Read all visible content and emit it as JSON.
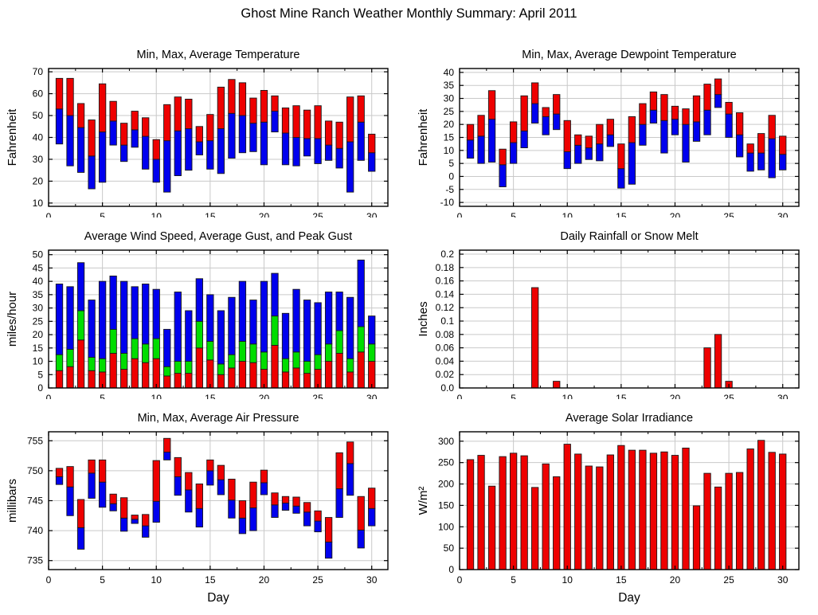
{
  "page_title": "Ghost Mine Ranch Weather Monthly Summary: April 2011",
  "palette": {
    "bar_red": "#ee0000",
    "bar_green": "#00dd00",
    "bar_blue": "#0000ee",
    "grid_line": "#c9c9c9",
    "axis_frame": "#000000",
    "background": "#ffffff"
  },
  "chart_data": [
    {
      "id": "temperature",
      "type": "range-bar",
      "title": "Min, Max, Average Temperature",
      "ylabel": "Fahrenheit",
      "xlabel": "",
      "grid_position": {
        "row": 0,
        "col": 0
      },
      "grid": true,
      "legend": "none",
      "xlim": [
        0,
        31.5
      ],
      "xticks": [
        0,
        5,
        10,
        15,
        20,
        25,
        30
      ],
      "ylim": [
        8.5,
        71.5
      ],
      "yticks": [
        10,
        20,
        30,
        40,
        50,
        60,
        70
      ],
      "x": [
        1,
        2,
        3,
        4,
        5,
        6,
        7,
        8,
        9,
        10,
        11,
        12,
        13,
        14,
        15,
        16,
        17,
        18,
        19,
        20,
        21,
        22,
        23,
        24,
        25,
        26,
        27,
        28,
        29,
        30
      ],
      "series": [
        {
          "name": "min",
          "color": "#0000ee",
          "values": [
            37,
            27,
            24,
            16.5,
            19.5,
            36.5,
            29,
            35.5,
            25.5,
            19.5,
            15,
            22.5,
            25,
            32,
            25.5,
            23.5,
            30.5,
            33,
            33.5,
            27.5,
            42.5,
            27.5,
            27,
            31.5,
            28,
            29.5,
            26,
            15,
            29.5,
            24.5
          ]
        },
        {
          "name": "average",
          "color": null,
          "values": [
            53,
            50,
            44.5,
            31.5,
            42.5,
            47.5,
            36.5,
            43.5,
            40.5,
            30,
            38.5,
            43,
            44,
            38,
            38.5,
            44,
            51,
            50,
            46.5,
            47,
            52,
            42,
            40,
            39.5,
            39.5,
            36.5,
            35,
            38,
            47,
            33
          ]
        },
        {
          "name": "max",
          "color": "#ee0000",
          "values": [
            67,
            67,
            55.5,
            48,
            64.5,
            56.5,
            46.5,
            52,
            49,
            39,
            55,
            58.5,
            57.5,
            45,
            50.5,
            63,
            66.5,
            65,
            58,
            61.5,
            59,
            53.5,
            54.5,
            52.5,
            54.5,
            47.5,
            47,
            58.5,
            59,
            41.5
          ]
        }
      ]
    },
    {
      "id": "dewpoint",
      "type": "range-bar",
      "title": "Min, Max, Average Dewpoint Temperature",
      "ylabel": "Fahrenheit",
      "xlabel": "",
      "grid_position": {
        "row": 0,
        "col": 1
      },
      "grid": true,
      "legend": "none",
      "xlim": [
        0,
        31.5
      ],
      "xticks": [
        0,
        5,
        10,
        15,
        20,
        25,
        30
      ],
      "ylim": [
        -11.5,
        41.5
      ],
      "yticks": [
        -10,
        -5,
        0,
        5,
        10,
        15,
        20,
        25,
        30,
        35,
        40
      ],
      "x": [
        1,
        2,
        3,
        4,
        5,
        6,
        7,
        8,
        9,
        10,
        11,
        12,
        13,
        14,
        15,
        16,
        17,
        18,
        19,
        20,
        21,
        22,
        23,
        24,
        25,
        26,
        27,
        28,
        29,
        30
      ],
      "series": [
        {
          "name": "min",
          "color": "#0000ee",
          "values": [
            7,
            5,
            5.5,
            -4,
            5,
            11,
            20.5,
            16,
            18,
            3,
            5,
            6.5,
            6,
            11.5,
            -4.5,
            -3,
            12,
            20.5,
            9,
            16,
            5.5,
            13.5,
            16,
            26.5,
            15,
            7.5,
            2,
            2.5,
            -0.5,
            2.5
          ]
        },
        {
          "name": "average",
          "color": null,
          "values": [
            14,
            15.5,
            22,
            4.5,
            13,
            17.5,
            28,
            23,
            24,
            9.5,
            12,
            11,
            12.5,
            16,
            3,
            13,
            20,
            25.5,
            21.5,
            22,
            20,
            21,
            25.5,
            31.5,
            24,
            16,
            9,
            9,
            14.5,
            8.5
          ]
        },
        {
          "name": "max",
          "color": "#ee0000",
          "values": [
            20,
            23.5,
            33,
            10.5,
            21,
            31,
            36,
            26.5,
            31.5,
            21.5,
            16,
            15.5,
            20,
            22,
            12.5,
            23,
            28,
            32.5,
            31.5,
            27,
            26,
            31,
            35.5,
            37.5,
            28.5,
            24.5,
            12.5,
            16.5,
            23.5,
            15.5
          ]
        }
      ]
    },
    {
      "id": "wind",
      "type": "stacked-level-bar",
      "title": "Average Wind Speed, Average Gust, and Peak Gust",
      "ylabel": "miles/hour",
      "xlabel": "",
      "grid_position": {
        "row": 1,
        "col": 0
      },
      "grid": true,
      "legend": "none",
      "xlim": [
        0,
        31.5
      ],
      "xticks": [
        0,
        5,
        10,
        15,
        20,
        25,
        30
      ],
      "ylim": [
        0,
        51.7
      ],
      "yticks": [
        0,
        5,
        10,
        15,
        20,
        25,
        30,
        35,
        40,
        45,
        50
      ],
      "x": [
        1,
        2,
        3,
        4,
        5,
        6,
        7,
        8,
        9,
        10,
        11,
        12,
        13,
        14,
        15,
        16,
        17,
        18,
        19,
        20,
        21,
        22,
        23,
        24,
        25,
        26,
        27,
        28,
        29,
        30
      ],
      "series": [
        {
          "name": "average-wind-speed",
          "color": "#ee0000",
          "values": [
            6.5,
            8,
            18,
            6.5,
            6,
            13,
            7,
            11,
            9.5,
            11,
            4.5,
            5.5,
            5.5,
            15,
            10.5,
            5,
            7.5,
            10,
            9.5,
            7,
            16,
            6,
            7.5,
            5.5,
            7,
            10,
            13,
            6,
            13.5,
            10
          ]
        },
        {
          "name": "average-gust",
          "color": "#00dd00",
          "values": [
            12.5,
            14.5,
            29,
            11.5,
            11,
            22,
            13,
            18.5,
            16.5,
            18.5,
            8,
            10,
            10,
            25,
            17.5,
            9,
            12.5,
            17.5,
            16.5,
            13.5,
            27,
            11,
            13.5,
            10,
            12.5,
            16.5,
            21.5,
            11,
            23,
            16.5
          ]
        },
        {
          "name": "peak-gust",
          "color": "#0000ee",
          "values": [
            39,
            38,
            47,
            33,
            40,
            42,
            40,
            38,
            39,
            37,
            22,
            36,
            29,
            41,
            35,
            29,
            34,
            40,
            33,
            40,
            43,
            28,
            37,
            33,
            32,
            36,
            36,
            34,
            48,
            27
          ]
        }
      ]
    },
    {
      "id": "rainfall",
      "type": "bar",
      "title": "Daily Rainfall or Snow Melt",
      "ylabel": "Inches",
      "xlabel": "",
      "grid_position": {
        "row": 1,
        "col": 1
      },
      "grid": true,
      "legend": "none",
      "xlim": [
        0,
        31.5
      ],
      "xticks": [
        0,
        5,
        10,
        15,
        20,
        25,
        30
      ],
      "ylim": [
        0,
        0.206
      ],
      "yticks": [
        0,
        0.02,
        0.04,
        0.06,
        0.08,
        0.1,
        0.12,
        0.14,
        0.16,
        0.18,
        0.2
      ],
      "ytick_labels": [
        "0.0",
        "0.02",
        "0.04",
        "0.06",
        "0.08",
        "0.1",
        "0.12",
        "0.14",
        "0.16",
        "0.18",
        "0.2"
      ],
      "x": [
        1,
        2,
        3,
        4,
        5,
        6,
        7,
        8,
        9,
        10,
        11,
        12,
        13,
        14,
        15,
        16,
        17,
        18,
        19,
        20,
        21,
        22,
        23,
        24,
        25,
        26,
        27,
        28,
        29,
        30
      ],
      "series": [
        {
          "name": "rainfall",
          "color": "#ee0000",
          "values": [
            0,
            0,
            0,
            0,
            0,
            0,
            0.15,
            0,
            0.01,
            0,
            0,
            0,
            0,
            0,
            0,
            0,
            0,
            0,
            0,
            0,
            0,
            0,
            0.06,
            0.08,
            0.01,
            0,
            0,
            0,
            0,
            0
          ]
        }
      ]
    },
    {
      "id": "pressure",
      "type": "range-bar",
      "title": "Min, Max, Average Air Pressure",
      "ylabel": "millibars",
      "xlabel": "Day",
      "grid_position": {
        "row": 2,
        "col": 0
      },
      "grid": true,
      "legend": "none",
      "xlim": [
        0,
        31.5
      ],
      "xticks": [
        0,
        5,
        10,
        15,
        20,
        25,
        30
      ],
      "ylim": [
        733.5,
        756.5
      ],
      "yticks": [
        735,
        740,
        745,
        750,
        755
      ],
      "x": [
        1,
        2,
        3,
        4,
        5,
        6,
        7,
        8,
        9,
        10,
        11,
        12,
        13,
        14,
        15,
        16,
        17,
        18,
        19,
        20,
        21,
        22,
        23,
        24,
        25,
        26,
        27,
        28,
        29,
        30
      ],
      "series": [
        {
          "name": "min",
          "color": "#0000ee",
          "values": [
            747.7,
            742.5,
            736.9,
            745.4,
            743.9,
            743.3,
            739.9,
            741.2,
            738.9,
            741.4,
            751.8,
            745.9,
            743.1,
            740.6,
            747.6,
            746,
            742.1,
            739.5,
            740,
            746,
            742.2,
            743.4,
            742.9,
            740.8,
            739.8,
            735.4,
            742.2,
            745.9,
            737.1,
            740.8
          ]
        },
        {
          "name": "average",
          "color": null,
          "values": [
            749,
            747.3,
            740.5,
            749.6,
            748.1,
            744.5,
            742.1,
            741.9,
            740.8,
            744.9,
            753.1,
            749,
            746.8,
            743.7,
            750,
            748.5,
            745.1,
            742.1,
            743.8,
            748,
            744.3,
            744.6,
            744.1,
            743.1,
            741.6,
            738.1,
            747,
            751.2,
            740.1,
            743.7
          ]
        },
        {
          "name": "max",
          "color": "#ee0000",
          "values": [
            750.4,
            750.7,
            745.2,
            751.8,
            751.8,
            746.1,
            745.5,
            742.6,
            742.7,
            751.7,
            755.4,
            752.2,
            749.7,
            747.8,
            751.8,
            750.9,
            748.6,
            745,
            748.1,
            750.1,
            746.3,
            745.7,
            745.6,
            744.7,
            743.3,
            742.2,
            753,
            754.8,
            745.7,
            747.1
          ]
        }
      ]
    },
    {
      "id": "solar",
      "type": "bar",
      "title": "Average Solar Irradiance",
      "ylabel": "W/m²",
      "xlabel": "Day",
      "grid_position": {
        "row": 2,
        "col": 1
      },
      "grid": true,
      "legend": "none",
      "xlim": [
        0,
        31.5
      ],
      "xticks": [
        0,
        5,
        10,
        15,
        20,
        25,
        30
      ],
      "ylim": [
        0,
        322
      ],
      "yticks": [
        0,
        50,
        100,
        150,
        200,
        250,
        300
      ],
      "x": [
        1,
        2,
        3,
        4,
        5,
        6,
        7,
        8,
        9,
        10,
        11,
        12,
        13,
        14,
        15,
        16,
        17,
        18,
        19,
        20,
        21,
        22,
        23,
        24,
        25,
        26,
        27,
        28,
        29,
        30
      ],
      "series": [
        {
          "name": "average-solar-irradiance",
          "color": "#ee0000",
          "values": [
            257,
            267,
            195,
            264,
            272,
            266,
            192,
            247,
            217,
            293,
            270,
            242,
            240,
            268,
            290,
            279,
            279,
            272,
            275,
            267,
            284,
            149,
            225,
            193,
            225,
            227,
            282,
            302,
            274,
            270
          ]
        }
      ]
    }
  ]
}
